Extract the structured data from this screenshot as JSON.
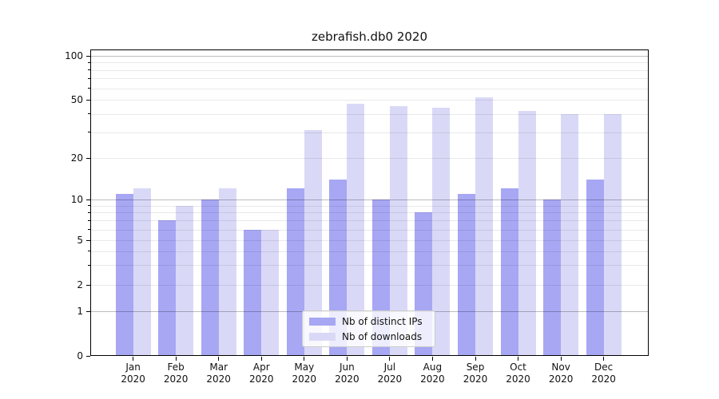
{
  "chart_data": {
    "type": "bar",
    "title": "zebrafish.db0 2020",
    "months": [
      "Jan",
      "Feb",
      "Mar",
      "Apr",
      "May",
      "Jun",
      "Jul",
      "Aug",
      "Sep",
      "Oct",
      "Nov",
      "Dec"
    ],
    "year": "2020",
    "series": [
      {
        "name": "Nb of distinct IPs",
        "color": "#a7a7f4",
        "values": [
          11,
          7,
          10,
          6,
          12,
          14,
          10,
          8,
          11,
          12,
          10,
          14
        ]
      },
      {
        "name": "Nb of downloads",
        "color": "#d9d9f7",
        "values": [
          12,
          9,
          12,
          6,
          31,
          47,
          45,
          44,
          52,
          42,
          40,
          40
        ]
      }
    ],
    "y_ticks": [
      100,
      50,
      20,
      10,
      5,
      2,
      1,
      0
    ],
    "y_minor_gridlines": [
      90,
      80,
      70,
      60,
      40,
      30,
      9,
      8,
      7,
      6,
      4,
      3
    ],
    "yscale": "symlog",
    "ylim": [
      0,
      110
    ],
    "xlabel": "",
    "ylabel": "",
    "grid": true,
    "legend_position": "lower center"
  }
}
